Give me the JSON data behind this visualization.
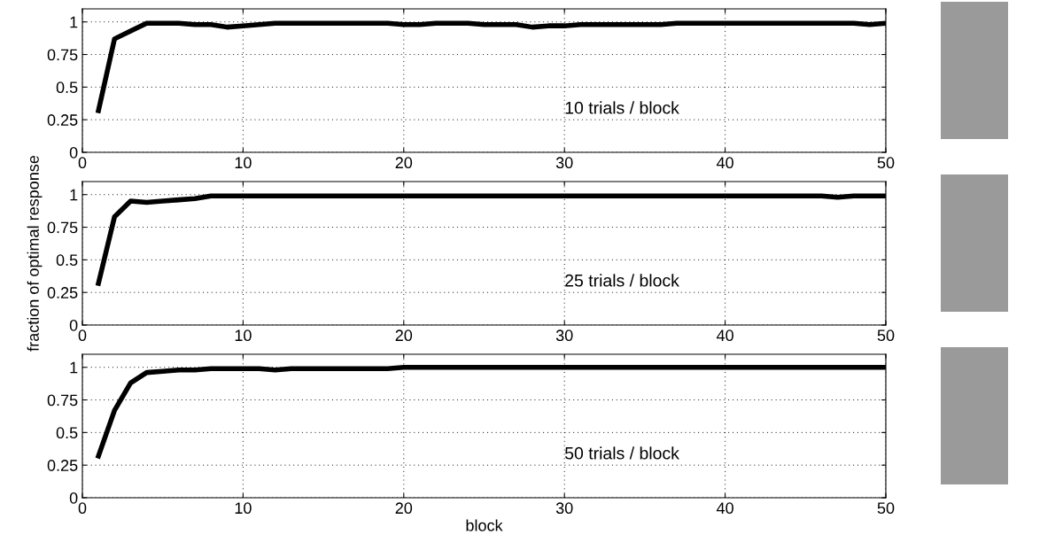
{
  "chart_data": [
    {
      "type": "line",
      "xlim": [
        0,
        50
      ],
      "xticks": [
        0,
        10,
        20,
        30,
        40,
        50
      ],
      "ylim": [
        0,
        1.1
      ],
      "yticks": [
        0,
        0.25,
        0.5,
        0.75,
        1
      ],
      "grid": true,
      "annotations": [
        "10 trials / block"
      ],
      "x": [
        1,
        2,
        3,
        4,
        5,
        6,
        7,
        8,
        9,
        10,
        11,
        12,
        13,
        14,
        15,
        16,
        17,
        18,
        19,
        20,
        21,
        22,
        23,
        24,
        25,
        26,
        27,
        28,
        29,
        30,
        31,
        32,
        33,
        34,
        35,
        36,
        37,
        38,
        39,
        40,
        41,
        42,
        43,
        44,
        45,
        46,
        47,
        48,
        49,
        50
      ],
      "series": [
        {
          "color": "#000000",
          "values": [
            0.32,
            0.87,
            0.93,
            0.99,
            0.99,
            0.99,
            0.98,
            0.98,
            0.96,
            0.97,
            0.98,
            0.99,
            0.99,
            0.99,
            0.99,
            0.99,
            0.99,
            0.99,
            0.99,
            0.98,
            0.98,
            0.99,
            0.99,
            0.99,
            0.98,
            0.98,
            0.98,
            0.96,
            0.97,
            0.97,
            0.98,
            0.98,
            0.98,
            0.98,
            0.98,
            0.98,
            0.99,
            0.99,
            0.99,
            0.99,
            0.99,
            0.99,
            0.99,
            0.99,
            0.99,
            0.99,
            0.99,
            0.99,
            0.98,
            0.99
          ]
        }
      ]
    },
    {
      "type": "line",
      "xlim": [
        0,
        50
      ],
      "xticks": [
        0,
        10,
        20,
        30,
        40,
        50
      ],
      "ylim": [
        0,
        1.1
      ],
      "yticks": [
        0,
        0.25,
        0.5,
        0.75,
        1
      ],
      "grid": true,
      "ylabel": "fraction of optimal response",
      "annotations": [
        "25 trials / block"
      ],
      "x": [
        1,
        2,
        3,
        4,
        5,
        6,
        7,
        8,
        9,
        10,
        11,
        12,
        13,
        14,
        15,
        16,
        17,
        18,
        19,
        20,
        21,
        22,
        23,
        24,
        25,
        26,
        27,
        28,
        29,
        30,
        31,
        32,
        33,
        34,
        35,
        36,
        37,
        38,
        39,
        40,
        41,
        42,
        43,
        44,
        45,
        46,
        47,
        48,
        49,
        50
      ],
      "series": [
        {
          "color": "#000000",
          "values": [
            0.32,
            0.83,
            0.95,
            0.94,
            0.95,
            0.96,
            0.97,
            0.99,
            0.99,
            0.99,
            0.99,
            0.99,
            0.99,
            0.99,
            0.99,
            0.99,
            0.99,
            0.99,
            0.99,
            0.99,
            0.99,
            0.99,
            0.99,
            0.99,
            0.99,
            0.99,
            0.99,
            0.99,
            0.99,
            0.99,
            0.99,
            0.99,
            0.99,
            0.99,
            0.99,
            0.99,
            0.99,
            0.99,
            0.99,
            0.99,
            0.99,
            0.99,
            0.99,
            0.99,
            0.99,
            0.99,
            0.98,
            0.99,
            0.99,
            0.99
          ]
        }
      ]
    },
    {
      "type": "line",
      "xlim": [
        0,
        50
      ],
      "xticks": [
        0,
        10,
        20,
        30,
        40,
        50
      ],
      "ylim": [
        0,
        1.1
      ],
      "yticks": [
        0,
        0.25,
        0.5,
        0.75,
        1
      ],
      "grid": true,
      "xlabel": "block",
      "annotations": [
        "50 trials / block"
      ],
      "x": [
        1,
        2,
        3,
        4,
        5,
        6,
        7,
        8,
        9,
        10,
        11,
        12,
        13,
        14,
        15,
        16,
        17,
        18,
        19,
        20,
        21,
        22,
        23,
        24,
        25,
        26,
        27,
        28,
        29,
        30,
        31,
        32,
        33,
        34,
        35,
        36,
        37,
        38,
        39,
        40,
        41,
        42,
        43,
        44,
        45,
        46,
        47,
        48,
        49,
        50
      ],
      "series": [
        {
          "color": "#000000",
          "values": [
            0.32,
            0.67,
            0.88,
            0.96,
            0.97,
            0.98,
            0.98,
            0.99,
            0.99,
            0.99,
            0.99,
            0.98,
            0.99,
            0.99,
            0.99,
            0.99,
            0.99,
            0.99,
            0.99,
            1.0,
            1.0,
            1.0,
            1.0,
            1.0,
            1.0,
            1.0,
            1.0,
            1.0,
            1.0,
            1.0,
            1.0,
            1.0,
            1.0,
            1.0,
            1.0,
            1.0,
            1.0,
            1.0,
            1.0,
            1.0,
            1.0,
            1.0,
            1.0,
            1.0,
            1.0,
            1.0,
            1.0,
            1.0,
            1.0,
            1.0
          ]
        }
      ]
    }
  ]
}
